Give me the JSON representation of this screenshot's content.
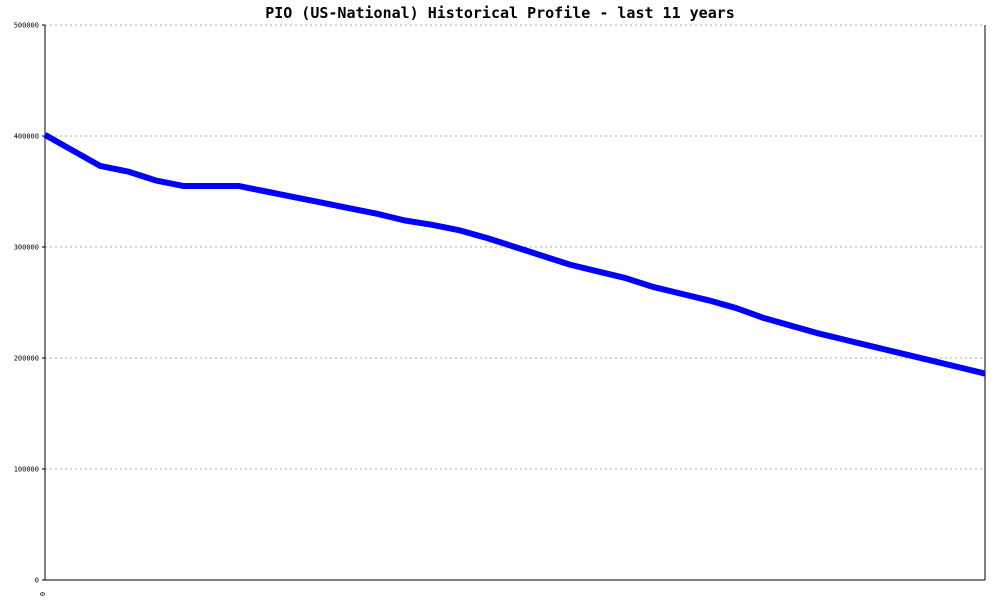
{
  "chart_data": {
    "type": "line",
    "title": "PIO (US-National) Historical Profile - last 11 years",
    "xlabel": "",
    "ylabel": "",
    "x_tick_labels": [
      "0"
    ],
    "y_tick_labels": [
      "0",
      "100000",
      "200000",
      "300000",
      "400000",
      "500000"
    ],
    "ylim": [
      0,
      500000
    ],
    "grid": true,
    "legend": "none",
    "line_color": "#0000ff",
    "grid_color": "#aaaaaa",
    "series": [
      {
        "values": [
          401000,
          387000,
          373000,
          368000,
          360000,
          355000,
          355000,
          355000,
          350000,
          345000,
          340000,
          335000,
          330000,
          324000,
          320000,
          315000,
          308000,
          300000,
          292000,
          284000,
          278000,
          272000,
          264000,
          258000,
          252000,
          245000,
          236000,
          229000,
          222000,
          216000,
          210000,
          204000,
          198000,
          192000,
          186000
        ]
      }
    ]
  }
}
